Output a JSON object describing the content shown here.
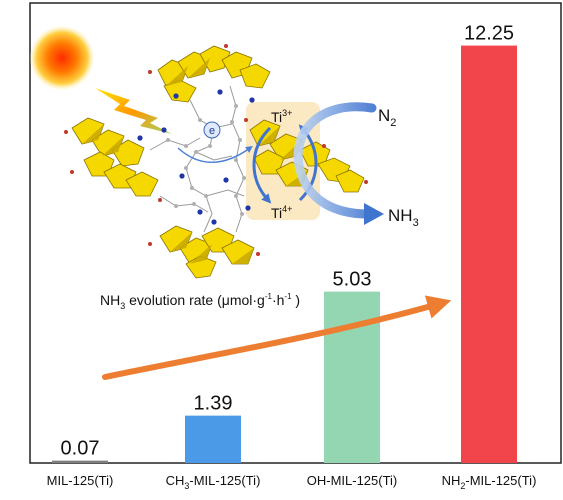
{
  "chart_data": {
    "type": "bar",
    "categories": [
      "MIL-125(Ti)",
      "CH3-MIL-125(Ti)",
      "OH-MIL-125(Ti)",
      "NH2-MIL-125(Ti)"
    ],
    "category_labels": [
      {
        "main": "MIL-125(Ti)",
        "sub": "",
        "rest": ""
      },
      {
        "main": "CH",
        "sub": "3",
        "rest": "-MIL-125(Ti)"
      },
      {
        "main": "OH-MIL-125(Ti)",
        "sub": "",
        "rest": ""
      },
      {
        "main": "NH",
        "sub": "2",
        "rest": "-MIL-125(Ti)"
      }
    ],
    "values": [
      0.07,
      1.39,
      5.03,
      12.25
    ],
    "value_labels": [
      "0.07",
      "1.39",
      "5.03",
      "12.25"
    ],
    "bar_colors": [
      "#7f7f7f",
      "#4a9ae8",
      "#93d6b1",
      "#f2454b"
    ],
    "ylim": [
      0,
      13.5
    ],
    "grid": false,
    "axis_title": {
      "prefix": "NH",
      "sub": "3",
      "mid": " evolution rate (μmol·g",
      "sup1": "-1",
      "mid2": "·h",
      "sup2": "-1",
      "suffix": " )"
    },
    "trend_arrow_color": "#ed7d31"
  },
  "schematic": {
    "ti3_label": {
      "base": "Ti",
      "sup": "3+"
    },
    "ti4_label": {
      "base": "Ti",
      "sup": "4+"
    },
    "electron_label": "e",
    "n2_label": {
      "base": "N",
      "sub": "2"
    },
    "nh3_label": {
      "base": "NH",
      "sub": "3"
    },
    "sun_color": "#ff8c00",
    "arrow_color": "#4a7fd4",
    "octahedra_color": "#f5d800",
    "highlight_color": "#fbe7bd"
  }
}
